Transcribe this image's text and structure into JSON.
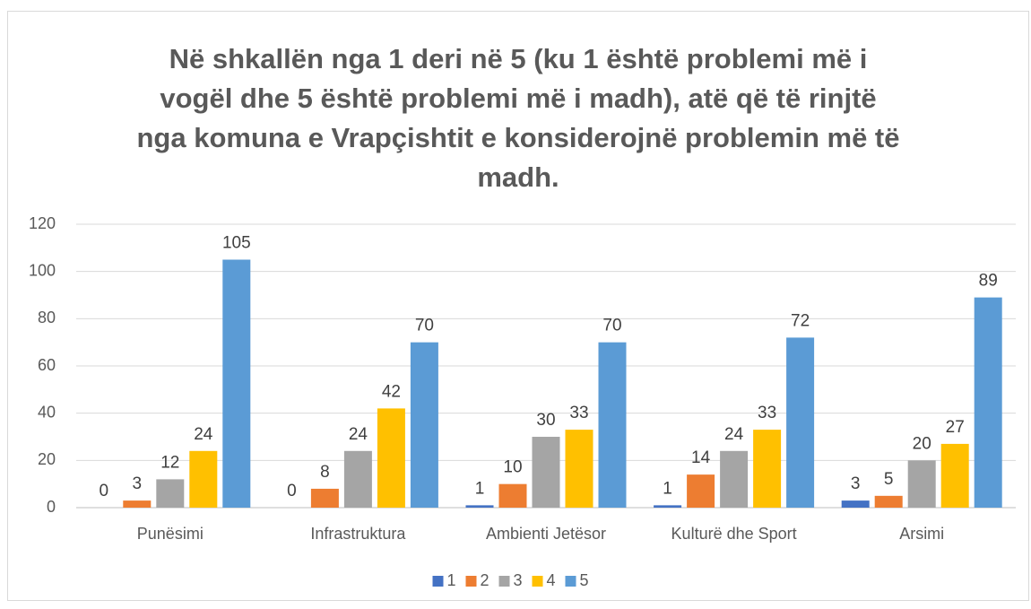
{
  "chart_data": {
    "type": "bar",
    "title": [
      "Në shkallën nga 1 deri në 5 (ku 1 është problemi më i",
      "vogël dhe 5 është problemi më i madh), atë që të rinjtë",
      "nga komuna e Vrapçishtit e konsiderojnë problemin më të",
      "madh."
    ],
    "categories": [
      "Punësimi",
      "Infrastruktura",
      "Ambienti Jetësor",
      "Kulturë dhe Sport",
      "Arsimi"
    ],
    "series": [
      {
        "name": "1",
        "color": "#4472c4",
        "values": [
          0,
          0,
          1,
          1,
          3
        ]
      },
      {
        "name": "2",
        "color": "#ed7d31",
        "values": [
          3,
          8,
          10,
          14,
          5
        ]
      },
      {
        "name": "3",
        "color": "#a5a5a5",
        "values": [
          12,
          24,
          30,
          24,
          20
        ]
      },
      {
        "name": "4",
        "color": "#ffc000",
        "values": [
          24,
          42,
          33,
          33,
          27
        ]
      },
      {
        "name": "5",
        "color": "#5b9bd5",
        "values": [
          105,
          70,
          70,
          72,
          89
        ]
      }
    ],
    "ylim": [
      0,
      120
    ],
    "yticks": [
      0,
      20,
      40,
      60,
      80,
      100,
      120
    ],
    "grid": true,
    "legend": "bottom"
  }
}
